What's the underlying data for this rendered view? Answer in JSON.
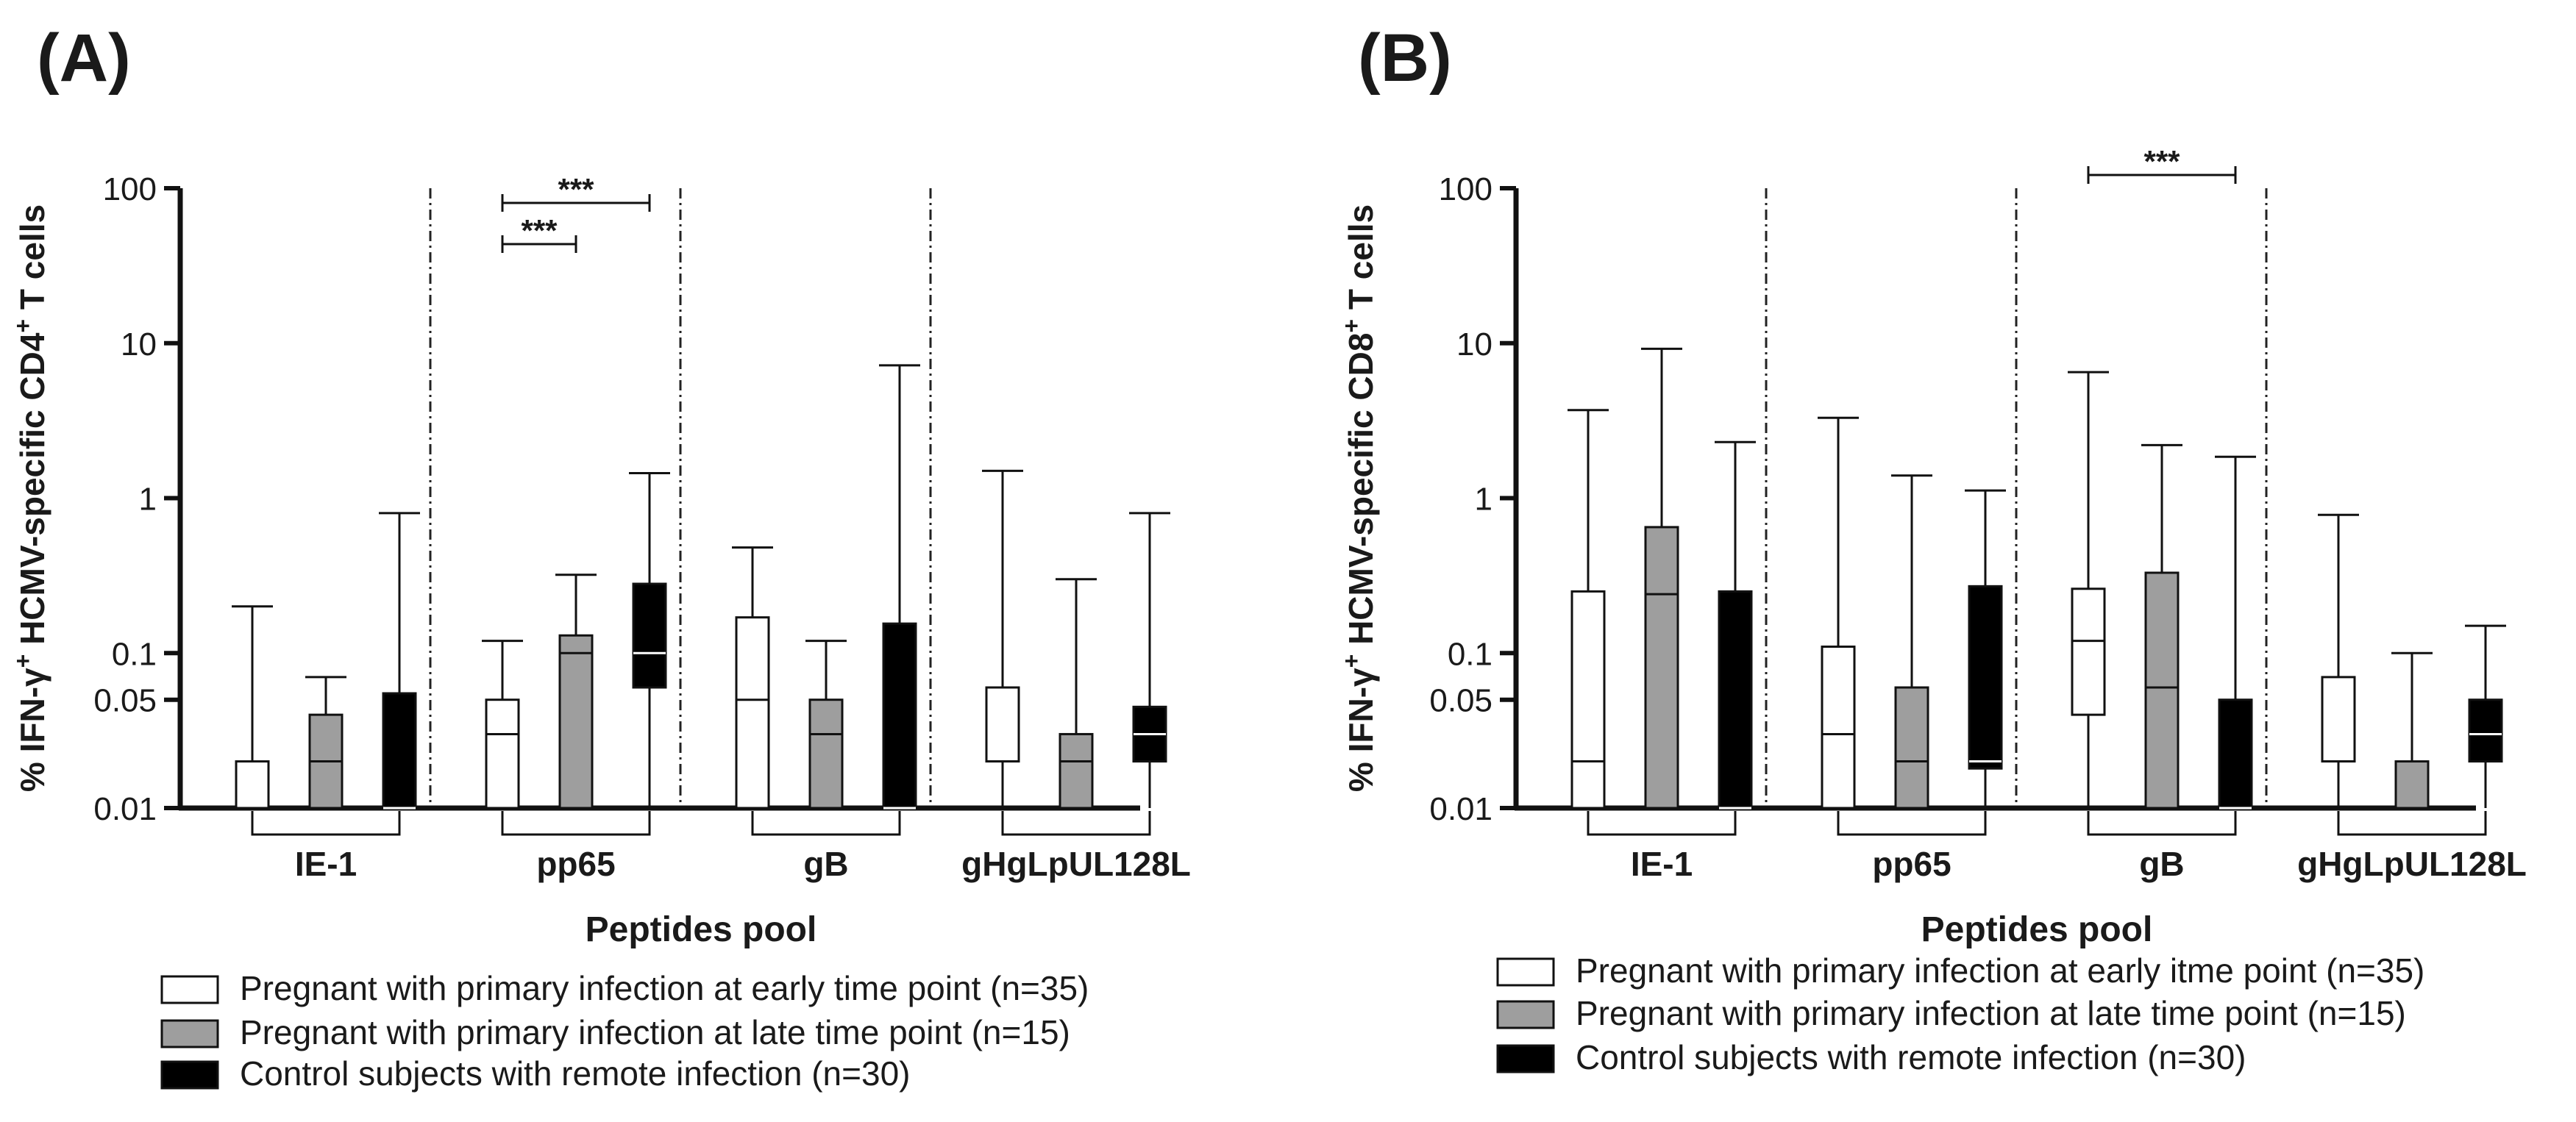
{
  "figure": {
    "x_title": "Peptides pool",
    "categories": [
      "IE-1",
      "pp65",
      "gB",
      "gHgLpUL128L"
    ],
    "ticks": [
      {
        "value": 100,
        "label": "100"
      },
      {
        "value": 10,
        "label": "10"
      },
      {
        "value": 1,
        "label": "1"
      },
      {
        "value": 0.1,
        "label": "0.1"
      },
      {
        "value": 0.05,
        "label": "0.05"
      },
      {
        "value": 0.01,
        "label": "0.01"
      }
    ],
    "colors": {
      "early": "#ffffff",
      "late": "#9e9e9e",
      "control": "#000000"
    }
  },
  "chart_data": [
    {
      "panel": "(A)",
      "type": "boxplot",
      "scale": "log",
      "ylim": [
        0.01,
        100
      ],
      "ylabel": {
        "prefix": "% IFN-γ",
        "sup1": "+",
        "middle": " HCMV-specific CD4",
        "sup2": "+",
        "suffix": " T cells"
      },
      "xlabel": "Peptides pool",
      "categories": [
        "IE-1",
        "pp65",
        "gB",
        "gHgLpUL128L"
      ],
      "legend": {
        "early": "Pregnant with primary infection at early time point (n=35)",
        "late": "Pregnant with primary infection at late time point (n=15)",
        "control": "Control subjects with remote infection (n=30)"
      },
      "series": [
        {
          "key": "early",
          "name": "Pregnant with primary infection at early time point (n=35)",
          "boxes": [
            {
              "min": 0.01,
              "q1": 0.01,
              "median": 0.01,
              "q3": 0.02,
              "max": 0.2
            },
            {
              "min": 0.01,
              "q1": 0.01,
              "median": 0.03,
              "q3": 0.05,
              "max": 0.12
            },
            {
              "min": 0.01,
              "q1": 0.01,
              "median": 0.05,
              "q3": 0.17,
              "max": 0.48
            },
            {
              "min": 0.01,
              "q1": 0.02,
              "median": 0.02,
              "q3": 0.06,
              "max": 1.5
            }
          ]
        },
        {
          "key": "late",
          "name": "Pregnant with primary infection at late time point (n=15)",
          "boxes": [
            {
              "min": 0.01,
              "q1": 0.01,
              "median": 0.02,
              "q3": 0.04,
              "max": 0.07
            },
            {
              "min": 0.01,
              "q1": 0.01,
              "median": 0.1,
              "q3": 0.13,
              "max": 0.32
            },
            {
              "min": 0.01,
              "q1": 0.01,
              "median": 0.03,
              "q3": 0.05,
              "max": 0.12
            },
            {
              "min": 0.01,
              "q1": 0.01,
              "median": 0.02,
              "q3": 0.03,
              "max": 0.3
            }
          ]
        },
        {
          "key": "control",
          "name": "Control subjects with remote infection (n=30)",
          "boxes": [
            {
              "min": 0.01,
              "q1": 0.01,
              "median": 0.01,
              "q3": 0.055,
              "max": 0.8
            },
            {
              "min": 0.01,
              "q1": 0.06,
              "median": 0.1,
              "q3": 0.28,
              "max": 1.45
            },
            {
              "min": 0.01,
              "q1": 0.01,
              "median": 0.01,
              "q3": 0.155,
              "max": 7.2
            },
            {
              "min": 0.01,
              "q1": 0.02,
              "median": 0.03,
              "q3": 0.045,
              "max": 0.8
            }
          ]
        }
      ],
      "significance": [
        {
          "category": 1,
          "from": "early",
          "to": "control",
          "label": "***",
          "level": 1
        },
        {
          "category": 1,
          "from": "early",
          "to": "late",
          "label": "***",
          "level": 0
        }
      ]
    },
    {
      "panel": "(B)",
      "type": "boxplot",
      "scale": "log",
      "ylim": [
        0.01,
        100
      ],
      "ylabel": {
        "prefix": "% IFN-γ",
        "sup1": "+",
        "middle": " HCMV-specific CD8",
        "sup2": "+",
        "suffix": " T cells"
      },
      "xlabel": "Peptides pool",
      "categories": [
        "IE-1",
        "pp65",
        "gB",
        "gHgLpUL128L"
      ],
      "legend": {
        "early": "Pregnant with primary infection at early itme point (n=35)",
        "late": "Pregnant with primary infection at late time point (n=15)",
        "control": "Control subjects with remote infection (n=30)"
      },
      "series": [
        {
          "key": "early",
          "name": "Pregnant with primary infection at early itme point (n=35)",
          "boxes": [
            {
              "min": 0.01,
              "q1": 0.01,
              "median": 0.02,
              "q3": 0.25,
              "max": 3.7
            },
            {
              "min": 0.01,
              "q1": 0.01,
              "median": 0.03,
              "q3": 0.11,
              "max": 3.3
            },
            {
              "min": 0.01,
              "q1": 0.04,
              "median": 0.12,
              "q3": 0.26,
              "max": 6.5
            },
            {
              "min": 0.01,
              "q1": 0.02,
              "median": 0.02,
              "q3": 0.07,
              "max": 0.78
            }
          ]
        },
        {
          "key": "late",
          "name": "Pregnant with primary infection at late time point (n=15)",
          "boxes": [
            {
              "min": 0.01,
              "q1": 0.01,
              "median": 0.24,
              "q3": 0.65,
              "max": 9.2
            },
            {
              "min": 0.01,
              "q1": 0.01,
              "median": 0.02,
              "q3": 0.06,
              "max": 1.4
            },
            {
              "min": 0.01,
              "q1": 0.01,
              "median": 0.06,
              "q3": 0.33,
              "max": 2.2
            },
            {
              "min": 0.01,
              "q1": 0.01,
              "median": 0.01,
              "q3": 0.02,
              "max": 0.1
            }
          ]
        },
        {
          "key": "control",
          "name": "Control subjects with remote infection (n=30)",
          "boxes": [
            {
              "min": 0.01,
              "q1": 0.01,
              "median": 0.01,
              "q3": 0.25,
              "max": 2.3
            },
            {
              "min": 0.01,
              "q1": 0.018,
              "median": 0.02,
              "q3": 0.27,
              "max": 1.12
            },
            {
              "min": 0.01,
              "q1": 0.01,
              "median": 0.01,
              "q3": 0.05,
              "max": 1.85
            },
            {
              "min": 0.01,
              "q1": 0.02,
              "median": 0.03,
              "q3": 0.05,
              "max": 0.15
            }
          ]
        }
      ],
      "significance": [
        {
          "category": 2,
          "from": "early",
          "to": "control",
          "label": "***",
          "level": 0
        }
      ]
    }
  ]
}
